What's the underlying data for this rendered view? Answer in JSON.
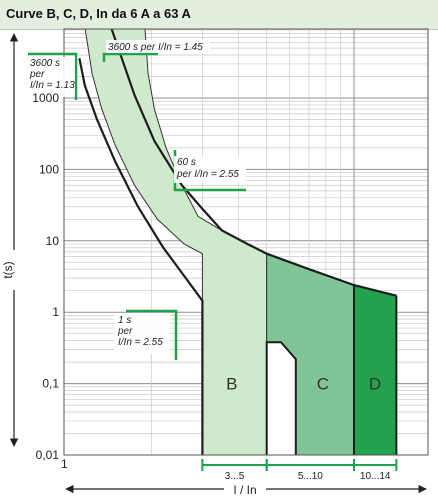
{
  "header": {
    "title": "Curve B, C, D,  In da 6 A a 63 A"
  },
  "chart_data": {
    "type": "area",
    "title": "Curve B, C, D,  In da 6 A a 63 A",
    "xlabel": "I / In",
    "ylabel": "t(s)",
    "xscale": "log",
    "yscale": "log",
    "xlim": [
      1,
      20
    ],
    "ylim": [
      0.01,
      10000
    ],
    "y_ticks": [
      {
        "value": 0.01,
        "label": "0,01"
      },
      {
        "value": 0.1,
        "label": "0,1"
      },
      {
        "value": 1,
        "label": "1"
      },
      {
        "value": 10,
        "label": "10"
      },
      {
        "value": 100,
        "label": "100"
      },
      {
        "value": 1000,
        "label": "1000"
      }
    ],
    "x_ticks": [
      {
        "value": 1,
        "label": "1"
      }
    ],
    "grid": true,
    "colors": {
      "B": "#cfe9cd",
      "C": "#7fc595",
      "D": "#22a24c",
      "annotation": "#1ea34a",
      "title_bg": "#e3eedf"
    },
    "series": [
      {
        "name": "B",
        "region": [
          [
            1.18,
            10000
          ],
          [
            1.25,
            2200
          ],
          [
            1.35,
            700
          ],
          [
            1.5,
            220
          ],
          [
            1.75,
            60
          ],
          [
            2.1,
            20
          ],
          [
            2.6,
            9
          ],
          [
            3,
            6.6
          ],
          [
            3,
            0.01
          ],
          [
            5,
            0.01
          ],
          [
            5,
            6.6
          ],
          [
            4.3,
            9
          ],
          [
            3.5,
            14
          ],
          [
            2.9,
            22
          ],
          [
            2.55,
            60
          ],
          [
            2.25,
            200
          ],
          [
            2.05,
            700
          ],
          [
            1.95,
            2200
          ],
          [
            1.9,
            10000
          ]
        ]
      },
      {
        "name": "C",
        "region": [
          [
            5,
            6.6
          ],
          [
            7,
            4
          ],
          [
            10,
            2.4
          ],
          [
            10,
            0.01
          ],
          [
            6.3,
            0.01
          ],
          [
            6.3,
            0.22
          ],
          [
            5.6,
            0.38
          ],
          [
            5,
            0.38
          ]
        ]
      },
      {
        "name": "D",
        "region": [
          [
            10,
            2.4
          ],
          [
            14,
            1.7
          ],
          [
            14,
            0.01
          ],
          [
            10,
            0.01
          ]
        ]
      }
    ],
    "lower_curve": [
      [
        1.13,
        3600
      ],
      [
        1.18,
        1500
      ],
      [
        1.3,
        500
      ],
      [
        1.5,
        130
      ],
      [
        1.8,
        30
      ],
      [
        2.2,
        8
      ],
      [
        2.6,
        3.2
      ],
      [
        3,
        1.45
      ],
      [
        3,
        0.01
      ]
    ],
    "upper_curve": [
      [
        1.45,
        10000
      ],
      [
        1.75,
        1100
      ],
      [
        2.05,
        250
      ],
      [
        2.55,
        60
      ],
      [
        3,
        28
      ],
      [
        3.5,
        14
      ],
      [
        4.3,
        9
      ],
      [
        5,
        6.6
      ],
      [
        7,
        4
      ],
      [
        10,
        2.4
      ],
      [
        14,
        1.7
      ]
    ],
    "ranges": [
      {
        "label": "3...5",
        "from": 3,
        "to": 5
      },
      {
        "label": "5...10",
        "from": 5,
        "to": 10
      },
      {
        "label": "10...14",
        "from": 10,
        "to": 14
      }
    ],
    "annotations": {
      "a3600_113": [
        "3600 s",
        "per",
        "I/In = 1.13"
      ],
      "a3600_145": "3600 s per I/In = 1.45",
      "a60": [
        "60 s",
        "per I/In = 2.55"
      ],
      "a1": [
        "1 s",
        "per",
        "I/In = 2.55"
      ]
    }
  }
}
